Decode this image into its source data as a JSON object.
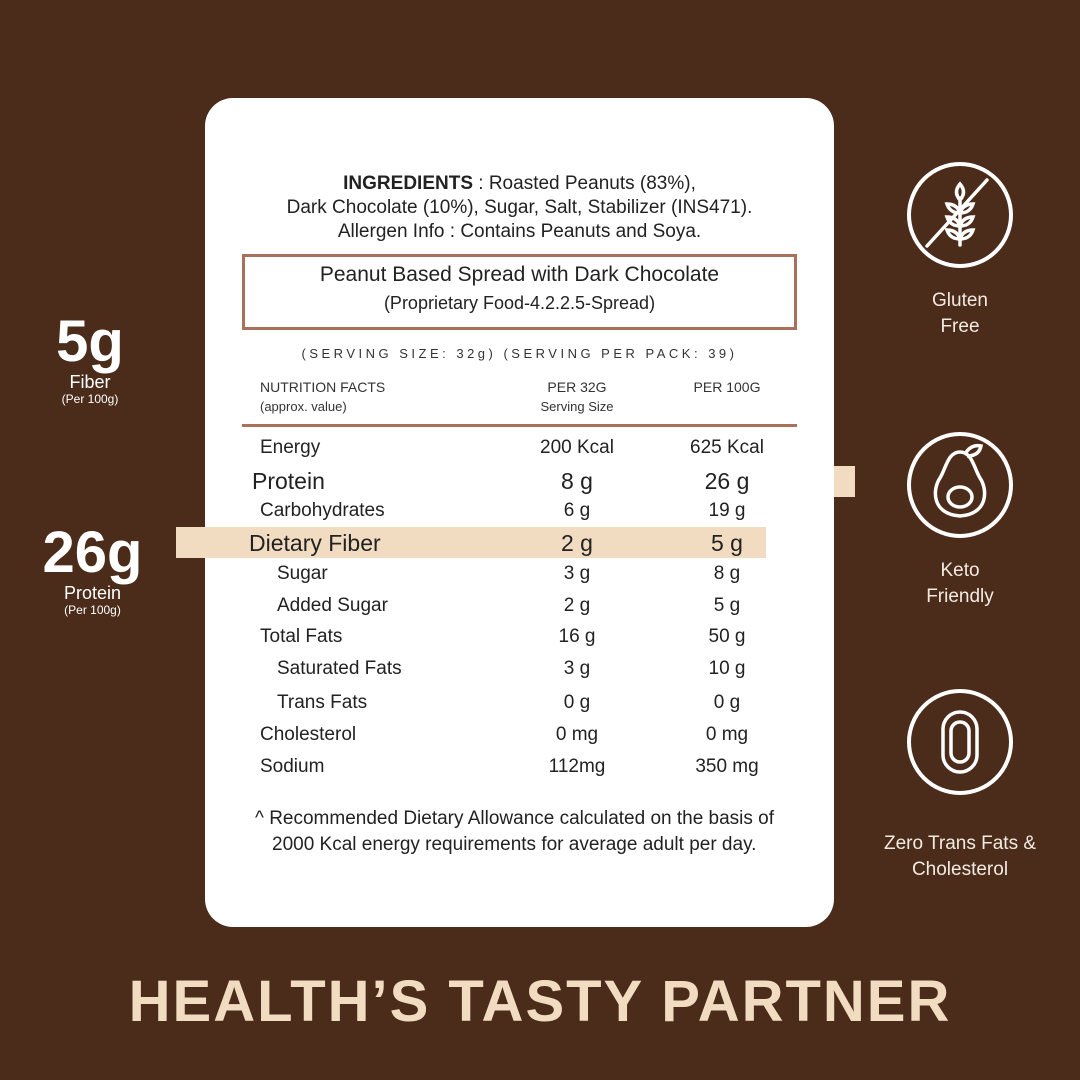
{
  "ingredients": {
    "label": "INGREDIENTS",
    "line1": " : Roasted Peanuts (83%),",
    "line2": "Dark Chocolate (10%),  Sugar, Salt, Stabilizer (INS471).",
    "line3": "Allergen Info : Contains Peanuts and Soya."
  },
  "product": {
    "name": "Peanut Based Spread with Dark Chocolate",
    "category": "(Proprietary Food-4.2.2.5-Spread)"
  },
  "serving": "(SERVING SIZE: 32g) (SERVING PER PACK: 39)",
  "table": {
    "headers": {
      "col0": "NUTRITION FACTS",
      "col0_sub": "(approx. value)",
      "col1": "PER 32G",
      "col1_sub": "Serving Size",
      "col2": "PER 100G"
    },
    "rows": [
      {
        "name": "Energy",
        "per32": "200 Kcal",
        "per100": "625 Kcal"
      },
      {
        "name": "Protein",
        "per32": "8 g",
        "per100": "26 g",
        "highlight": true
      },
      {
        "name": "Carbohydrates",
        "per32": "6 g",
        "per100": "19 g"
      },
      {
        "name": "Dietary Fiber",
        "per32": "2 g",
        "per100": "5 g",
        "highlight": true
      },
      {
        "name": "Sugar",
        "per32": "3 g",
        "per100": "8 g",
        "indent": true
      },
      {
        "name": "Added Sugar",
        "per32": "2 g",
        "per100": "5 g",
        "indent": true
      },
      {
        "name": "Total Fats",
        "per32": "16 g",
        "per100": "50 g"
      },
      {
        "name": "Saturated Fats",
        "per32": "3 g",
        "per100": "10 g",
        "indent": true
      },
      {
        "name": "Trans Fats",
        "per32": "0 g",
        "per100": "0 g",
        "indent": true
      },
      {
        "name": "Cholesterol",
        "per32": "0 mg",
        "per100": "0 mg"
      },
      {
        "name": "Sodium",
        "per32": "112mg",
        "per100": "350 mg"
      }
    ]
  },
  "footnote": {
    "line1": "^ Recommended Dietary Allowance calculated on the basis of",
    "line2": "2000 Kcal energy requirements for average adult per day."
  },
  "callouts": [
    {
      "value": "5g",
      "label": "Fiber",
      "sub": "(Per 100g)"
    },
    {
      "value": "26g",
      "label": "Protein",
      "sub": "(Per 100g)"
    }
  ],
  "features": [
    {
      "icon": "gluten-free-icon",
      "line1": "Gluten",
      "line2": "Free"
    },
    {
      "icon": "avocado-icon",
      "line1": "Keto",
      "line2": "Friendly"
    },
    {
      "icon": "zero-icon",
      "line1": "Zero Trans Fats &",
      "line2": "Cholesterol"
    }
  ],
  "tagline": "HEALTH’S TASTY PARTNER",
  "colors": {
    "background": "#4b2c1a",
    "highlight": "#f1dcc1",
    "border": "#a9705a"
  }
}
